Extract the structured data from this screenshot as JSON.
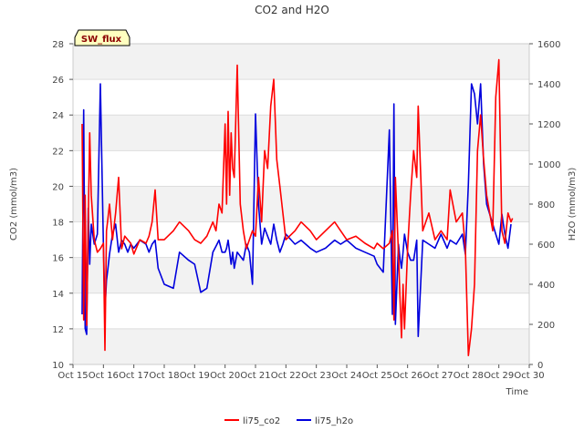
{
  "chart_data": {
    "type": "line",
    "title": "CO2 and H2O",
    "site_label": "SW_flux",
    "xlabel": "Time",
    "ylabel_left": "CO2 (mmol/m3)",
    "ylabel_right": "H2O (mmol/m3)",
    "x_ticks": [
      "Oct 15",
      "Oct 16",
      "Oct 17",
      "Oct 18",
      "Oct 19",
      "Oct 20",
      "Oct 21",
      "Oct 22",
      "Oct 23",
      "Oct 24",
      "Oct 25",
      "Oct 26",
      "Oct 27",
      "Oct 28",
      "Oct 29",
      "Oct 30"
    ],
    "xlim": [
      15,
      30
    ],
    "ylim_left": [
      10,
      28
    ],
    "ylim_right": [
      0,
      1600
    ],
    "y_ticks_left": [
      10,
      12,
      14,
      16,
      18,
      20,
      22,
      24,
      26,
      28
    ],
    "y_ticks_right": [
      0,
      200,
      400,
      600,
      800,
      1000,
      1200,
      1400,
      1600
    ],
    "grid": "horizontal bands",
    "legend_position": "bottom-center",
    "series": [
      {
        "name": "li75_co2",
        "axis": "left",
        "color": "#ff0000",
        "x": [
          15.3,
          15.35,
          15.4,
          15.45,
          15.5,
          15.55,
          15.6,
          15.7,
          15.8,
          15.9,
          16.0,
          16.05,
          16.1,
          16.15,
          16.2,
          16.3,
          16.4,
          16.5,
          16.6,
          16.7,
          16.8,
          16.9,
          17.0,
          17.2,
          17.4,
          17.5,
          17.6,
          17.7,
          17.8,
          18.0,
          18.3,
          18.5,
          18.8,
          19.0,
          19.2,
          19.4,
          19.6,
          19.7,
          19.8,
          19.9,
          20.0,
          20.05,
          20.1,
          20.15,
          20.2,
          20.25,
          20.3,
          20.4,
          20.5,
          20.6,
          20.7,
          20.8,
          20.9,
          21.0,
          21.1,
          21.2,
          21.3,
          21.4,
          21.5,
          21.6,
          21.7,
          21.8,
          21.9,
          22.0,
          22.3,
          22.5,
          22.8,
          23.0,
          23.3,
          23.6,
          23.8,
          24.0,
          24.3,
          24.6,
          24.9,
          25.0,
          25.2,
          25.4,
          25.5,
          25.55,
          25.6,
          25.7,
          25.75,
          25.8,
          25.85,
          25.9,
          26.0,
          26.1,
          26.2,
          26.3,
          26.35,
          26.5,
          26.7,
          26.9,
          27.1,
          27.3,
          27.4,
          27.6,
          27.8,
          27.9,
          28.0,
          28.1,
          28.2,
          28.3,
          28.4,
          28.5,
          28.6,
          28.8,
          28.9,
          29.0,
          29.1,
          29.2,
          29.3,
          29.4
        ],
        "values": [
          23.5,
          12.5,
          19.5,
          12.2,
          18.0,
          23.0,
          19.5,
          17.0,
          16.3,
          16.5,
          16.8,
          10.8,
          17.5,
          18.2,
          19.0,
          17.0,
          18.5,
          20.5,
          16.5,
          17.2,
          17.0,
          16.8,
          16.2,
          17.0,
          16.8,
          17.2,
          18.0,
          19.8,
          17.0,
          17.0,
          17.5,
          18.0,
          17.5,
          17.0,
          16.8,
          17.2,
          18.0,
          17.5,
          19.0,
          18.5,
          23.5,
          19.0,
          24.2,
          19.5,
          23.0,
          21.0,
          20.5,
          26.8,
          19.0,
          17.5,
          16.5,
          17.0,
          17.5,
          17.2,
          20.5,
          18.0,
          22.0,
          21.0,
          24.5,
          26.0,
          21.5,
          20.0,
          18.5,
          17.0,
          17.5,
          18.0,
          17.5,
          17.0,
          17.5,
          18.0,
          17.5,
          17.0,
          17.2,
          16.8,
          16.5,
          16.8,
          16.5,
          16.8,
          17.5,
          12.5,
          20.5,
          16.2,
          13.8,
          11.5,
          14.5,
          12.0,
          16.5,
          19.5,
          22.0,
          20.5,
          24.5,
          17.5,
          18.5,
          17.0,
          17.5,
          17.0,
          19.8,
          18.0,
          18.5,
          16.5,
          10.5,
          12.0,
          14.5,
          22.0,
          24.0,
          21.5,
          19.5,
          17.5,
          25.0,
          27.1,
          17.5,
          16.8,
          18.5,
          18.0
        ],
        "extra": [
          [
            29.45,
            18.2
          ]
        ]
      },
      {
        "name": "li75_h2o",
        "axis": "right",
        "color": "#0000dd",
        "x": [
          15.3,
          15.35,
          15.4,
          15.45,
          15.5,
          15.55,
          15.6,
          15.7,
          15.8,
          15.9,
          16.0,
          16.05,
          16.1,
          16.15,
          16.2,
          16.3,
          16.4,
          16.5,
          16.6,
          16.7,
          16.8,
          16.9,
          17.0,
          17.2,
          17.4,
          17.5,
          17.6,
          17.7,
          17.8,
          18.0,
          18.3,
          18.5,
          18.8,
          19.0,
          19.2,
          19.4,
          19.6,
          19.7,
          19.8,
          19.9,
          20.0,
          20.05,
          20.1,
          20.15,
          20.2,
          20.25,
          20.3,
          20.4,
          20.5,
          20.6,
          20.7,
          20.8,
          20.9,
          21.0,
          21.1,
          21.2,
          21.3,
          21.4,
          21.5,
          21.6,
          21.7,
          21.8,
          21.9,
          22.0,
          22.3,
          22.5,
          22.8,
          23.0,
          23.3,
          23.6,
          23.8,
          24.0,
          24.3,
          24.6,
          24.9,
          25.0,
          25.2,
          25.4,
          25.5,
          25.55,
          25.6,
          25.7,
          25.75,
          25.8,
          25.85,
          25.9,
          26.0,
          26.1,
          26.2,
          26.3,
          26.35,
          26.5,
          26.7,
          26.9,
          27.1,
          27.3,
          27.4,
          27.6,
          27.8,
          27.9,
          28.0,
          28.1,
          28.2,
          28.3,
          28.4,
          28.5,
          28.6,
          28.8,
          28.9,
          29.0,
          29.1,
          29.2,
          29.3,
          29.4
        ],
        "values": [
          250,
          1270,
          180,
          150,
          780,
          500,
          700,
          600,
          650,
          1400,
          600,
          270,
          420,
          480,
          550,
          650,
          700,
          560,
          620,
          600,
          560,
          600,
          580,
          620,
          600,
          560,
          600,
          620,
          480,
          400,
          380,
          560,
          520,
          500,
          360,
          380,
          560,
          590,
          620,
          560,
          560,
          580,
          620,
          560,
          500,
          560,
          480,
          560,
          540,
          520,
          600,
          560,
          400,
          1250,
          800,
          600,
          680,
          640,
          600,
          700,
          620,
          560,
          600,
          650,
          600,
          620,
          580,
          560,
          580,
          620,
          600,
          620,
          580,
          560,
          540,
          500,
          460,
          1170,
          250,
          1300,
          200,
          600,
          530,
          480,
          560,
          650,
          560,
          520,
          520,
          620,
          140,
          620,
          600,
          580,
          650,
          580,
          620,
          600,
          650,
          550,
          900,
          1400,
          1350,
          1200,
          1400,
          1000,
          800,
          700,
          650,
          600,
          750,
          650,
          580,
          700
        ],
        "extra": []
      }
    ]
  }
}
